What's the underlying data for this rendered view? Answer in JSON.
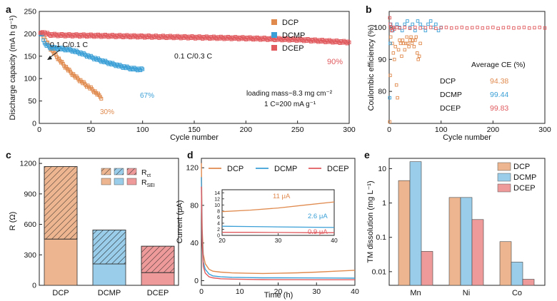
{
  "colors": {
    "dcp": "#e08a4e",
    "dcmp": "#3a9fd6",
    "dcep": "#e05a5e",
    "dcp_fill": "#eeb690",
    "dcmp_fill": "#99cdea",
    "dcep_fill": "#ee9a9a",
    "axis": "#222222"
  },
  "chart_data": [
    {
      "id": "a",
      "panel_label": "a",
      "type": "line",
      "xlabel": "Cycle number",
      "ylabel": "Discharge capacity (mA h g⁻¹)",
      "xlim": [
        0,
        300
      ],
      "ylim": [
        0,
        250
      ],
      "xticks": [
        "0",
        "50",
        "100",
        "150",
        "200",
        "250",
        "300"
      ],
      "yticks": [
        "0",
        "50",
        "100",
        "150",
        "200",
        "250"
      ],
      "legend": [
        "DCP",
        "DCMP",
        "DCEP"
      ],
      "annotations": {
        "formation": "0.1 C/0.1 C",
        "cycling": "0.1 C/0.3 C",
        "loading": "loading mass~8.3 mg cm⁻²",
        "rate": "1 C=200 mA g⁻¹"
      },
      "retention_labels": [
        "30%",
        "67%",
        "90%"
      ],
      "series": [
        {
          "name": "DCP",
          "x": [
            1,
            3,
            5,
            8,
            10,
            15,
            20,
            25,
            30,
            35,
            40,
            45,
            50,
            55,
            60
          ],
          "y": [
            199,
            200,
            190,
            178,
            170,
            155,
            140,
            127,
            115,
            104,
            95,
            86,
            78,
            68,
            58
          ],
          "end_label": "30%"
        },
        {
          "name": "DCMP",
          "x": [
            1,
            3,
            5,
            10,
            15,
            20,
            30,
            40,
            50,
            60,
            70,
            80,
            90,
            100
          ],
          "y": [
            196,
            199,
            178,
            170,
            168,
            167,
            164,
            157,
            148,
            140,
            133,
            127,
            122,
            120
          ],
          "end_label": "67%"
        },
        {
          "name": "DCEP",
          "x": [
            1,
            3,
            5,
            10,
            20,
            50,
            100,
            150,
            200,
            250,
            300
          ],
          "y": [
            199,
            205,
            202,
            198,
            197,
            196,
            194,
            192,
            190,
            187,
            181
          ],
          "end_label": "90%"
        }
      ]
    },
    {
      "id": "b",
      "panel_label": "b",
      "type": "scatter",
      "xlabel": "Cycle number",
      "ylabel": "Coulombic efficiency (%)",
      "xlim": [
        0,
        300
      ],
      "ylim": [
        70,
        105
      ],
      "xticks": [
        "0",
        "100",
        "200",
        "300"
      ],
      "yticks": [
        "80",
        "90",
        "100"
      ],
      "table_title": "Average CE (%)",
      "table_rows": [
        {
          "name": "DCP",
          "value": "94.38"
        },
        {
          "name": "DCMP",
          "value": "99.44"
        },
        {
          "name": "DCEP",
          "value": "99.83"
        }
      ],
      "series": [
        {
          "name": "DCP",
          "x": [
            1,
            2,
            3,
            4,
            5,
            6,
            8,
            10,
            12,
            14,
            16,
            18,
            20,
            22,
            24,
            26,
            28,
            30,
            32,
            34,
            36,
            38,
            40,
            42,
            44,
            46,
            48,
            50,
            52,
            54,
            56,
            58,
            60
          ],
          "y": [
            70,
            85,
            97,
            100,
            99,
            95,
            92,
            90,
            94,
            82,
            78,
            93,
            96,
            95,
            91,
            96,
            95,
            93,
            95,
            97,
            95,
            94,
            96,
            97,
            95,
            96,
            94,
            96,
            97,
            92,
            90,
            91,
            95
          ]
        },
        {
          "name": "DCMP",
          "x": [
            1,
            2,
            3,
            5,
            7,
            10,
            15,
            20,
            25,
            30,
            35,
            40,
            45,
            50,
            55,
            60,
            65,
            70,
            75,
            80,
            85,
            90,
            95,
            100
          ],
          "y": [
            78,
            95,
            101,
            100,
            99,
            100,
            101,
            100,
            99,
            101,
            102,
            100,
            101,
            99,
            102,
            101,
            100,
            99,
            101,
            102,
            100,
            101,
            99,
            100
          ]
        },
        {
          "name": "DCEP",
          "x": [
            1,
            2,
            3,
            5,
            8,
            10,
            15,
            20,
            30,
            40,
            50,
            60,
            70,
            80,
            90,
            100,
            110,
            120,
            130,
            140,
            150,
            160,
            170,
            180,
            190,
            200,
            210,
            220,
            230,
            240,
            250,
            260,
            270,
            280,
            290,
            300
          ],
          "y": [
            103,
            101,
            100,
            99,
            100,
            99.5,
            100,
            99.8,
            100,
            99.7,
            100,
            99.8,
            99.9,
            100,
            99.7,
            99.9,
            100,
            99.8,
            99.9,
            100,
            99.8,
            99.9,
            100,
            99.8,
            99.9,
            100,
            99.7,
            99.9,
            100,
            99.8,
            99.9,
            100,
            99.8,
            99.9,
            100,
            99.8
          ]
        }
      ]
    },
    {
      "id": "c",
      "panel_label": "c",
      "type": "bar",
      "ylabel": "R (Ω)",
      "ylim": [
        0,
        1250
      ],
      "yticks": [
        "0",
        "300",
        "600",
        "900",
        "1200"
      ],
      "categories": [
        "DCP",
        "DCMP",
        "DCEP"
      ],
      "legend": {
        "rct": "R",
        "rct_sub": "ct",
        "rsei": "R",
        "rsei_sub": "SEI"
      },
      "series": [
        {
          "name": "R_SEI",
          "values": [
            455,
            210,
            125
          ]
        },
        {
          "name": "R_ct",
          "values": [
            715,
            335,
            260
          ]
        }
      ]
    },
    {
      "id": "d",
      "panel_label": "d",
      "type": "line",
      "xlabel": "Time (h)",
      "ylabel": "Current (μA)",
      "xlim": [
        0,
        40
      ],
      "ylim": [
        -5,
        130
      ],
      "xticks": [
        "0",
        "10",
        "20",
        "30",
        "40"
      ],
      "yticks": [
        "0",
        "40",
        "80",
        "120"
      ],
      "legend": [
        "DCP",
        "DCMP",
        "DCEP"
      ],
      "inset": {
        "xlim": [
          20,
          40
        ],
        "ylim": [
          0,
          15
        ],
        "xticks": [
          "20",
          "30",
          "40"
        ],
        "yticks": [
          "0",
          "2",
          "4",
          "6",
          "8",
          "10",
          "12",
          "14"
        ],
        "labels": [
          "11 μA",
          "2.6 μA",
          "0.9 μA"
        ]
      },
      "series": [
        {
          "name": "DCP",
          "x": [
            0,
            0.2,
            0.5,
            1,
            2,
            3,
            5,
            8,
            12,
            16,
            20,
            25,
            30,
            35,
            40
          ],
          "y": [
            125,
            55,
            28,
            18,
            12,
            10,
            9,
            8.2,
            7.8,
            7.6,
            7.8,
            8.3,
            9,
            10,
            11
          ],
          "end_label": "11 μA"
        },
        {
          "name": "DCMP",
          "x": [
            0,
            0.2,
            0.5,
            1,
            2,
            3,
            5,
            8,
            12,
            16,
            20,
            25,
            30,
            35,
            40
          ],
          "y": [
            110,
            45,
            20,
            12,
            7,
            5,
            4,
            3.5,
            3.2,
            3,
            3,
            2.9,
            2.8,
            2.7,
            2.6
          ],
          "end_label": "2.6 μA"
        },
        {
          "name": "DCEP",
          "x": [
            0,
            0.2,
            0.5,
            1,
            2,
            3,
            5,
            8,
            12,
            16,
            20,
            25,
            30,
            35,
            40
          ],
          "y": [
            100,
            40,
            15,
            8,
            4,
            3,
            2,
            1.6,
            1.3,
            1.1,
            1,
            1,
            0.95,
            0.9,
            0.9
          ],
          "end_label": "0.9 μA"
        }
      ]
    },
    {
      "id": "e",
      "panel_label": "e",
      "type": "bar",
      "ylabel": "TM dissolution (mg L⁻¹)",
      "yscale": "log",
      "ylim": [
        0.004,
        20
      ],
      "yticks": [
        "0.01",
        "0.1",
        "1",
        "10"
      ],
      "categories": [
        "Mn",
        "Ni",
        "Co"
      ],
      "legend": [
        "DCP",
        "DCMP",
        "DCEP"
      ],
      "series": [
        {
          "name": "DCP",
          "values": [
            4.5,
            1.45,
            0.075
          ]
        },
        {
          "name": "DCMP",
          "values": [
            16,
            1.45,
            0.019
          ]
        },
        {
          "name": "DCEP",
          "values": [
            0.039,
            0.33,
            0.006
          ]
        }
      ]
    }
  ]
}
